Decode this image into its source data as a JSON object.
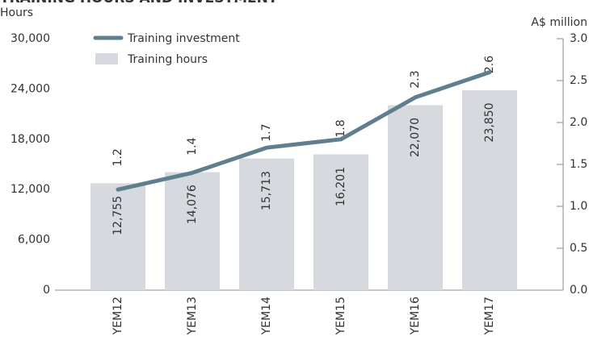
{
  "chart_data": {
    "type": "bar_line",
    "title": "TRAINING HOURS AND INVESTMENT",
    "y_label": "Hours",
    "y2_label": "A$ million",
    "categories": [
      "YEM12",
      "YEM13",
      "YEM14",
      "YEM15",
      "YEM16",
      "YEM17"
    ],
    "series": [
      {
        "name": "Training hours",
        "type": "bar",
        "color": "#d6dade",
        "values": [
          12755,
          14076,
          15713,
          16201,
          22070,
          23850
        ],
        "value_labels": [
          "12,755",
          "14,076",
          "15,713",
          "16,201",
          "22,070",
          "23,850"
        ]
      },
      {
        "name": "Training investment",
        "type": "line",
        "axis": "y2",
        "color": "#5f7f8e",
        "values": [
          1.2,
          1.4,
          1.7,
          1.8,
          2.3,
          2.6
        ]
      }
    ],
    "ylim": [
      0,
      30000
    ],
    "yticks": [
      0,
      {
        "value": 6000,
        "label": "6,000"
      },
      {
        "value": 12000,
        "label": "12,000"
      },
      {
        "value": 18000,
        "label": "18,000"
      },
      {
        "value": 24000,
        "label": "24,000"
      },
      {
        "value": 30000,
        "label": "30,000"
      }
    ],
    "y2lim": [
      0,
      3
    ],
    "y2ticks": [
      {
        "value": 0,
        "label": "0.0"
      },
      0.5,
      {
        "value": 1,
        "label": "1.0"
      },
      1.5,
      {
        "value": 2,
        "label": "2.0"
      },
      2.5,
      {
        "value": 3,
        "label": "3.0"
      }
    ]
  }
}
